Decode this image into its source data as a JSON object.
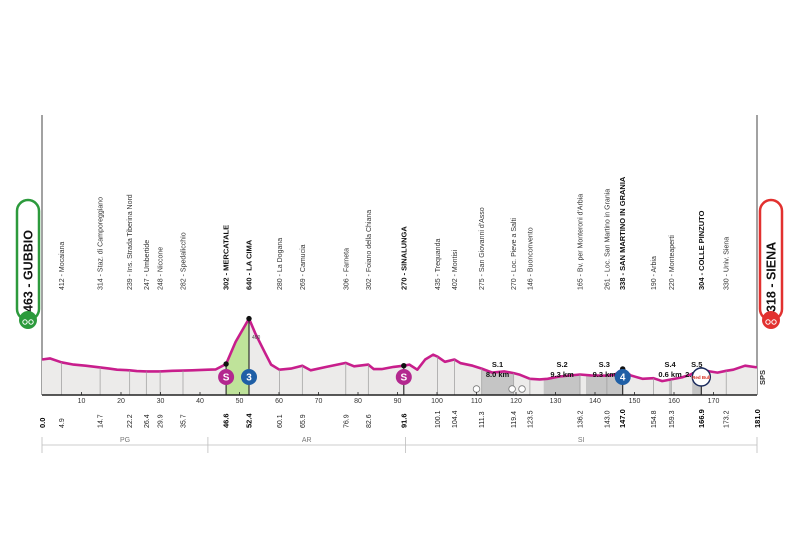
{
  "chart_data": {
    "type": "area",
    "xlim": [
      0,
      181
    ],
    "profile_color": "#c81e8c",
    "start": {
      "altitude": "463",
      "name": "GUBBIO",
      "label_color": "#2c9a3c"
    },
    "finish": {
      "altitude": "318",
      "name": "SIENA",
      "label_color": "#e2312f"
    },
    "x_ticks": [
      "10",
      "20",
      "30",
      "40",
      "50",
      "60",
      "70",
      "80",
      "90",
      "100",
      "110",
      "120",
      "130",
      "140",
      "150",
      "160",
      "170"
    ],
    "elevation_marker": "400",
    "profile": [
      [
        0,
        318
      ],
      [
        2,
        322
      ],
      [
        4.9,
        308
      ],
      [
        8,
        300
      ],
      [
        11,
        296
      ],
      [
        14.7,
        290
      ],
      [
        17,
        286
      ],
      [
        19,
        282
      ],
      [
        22.2,
        280
      ],
      [
        24,
        277
      ],
      [
        26.4,
        276
      ],
      [
        29.9,
        276
      ],
      [
        33,
        278
      ],
      [
        35.7,
        279
      ],
      [
        38,
        280
      ],
      [
        42,
        282
      ],
      [
        44,
        283
      ],
      [
        46.6,
        302
      ],
      [
        49,
        380
      ],
      [
        52.4,
        462
      ],
      [
        54,
        410
      ],
      [
        56.5,
        340
      ],
      [
        58,
        300
      ],
      [
        60.1,
        282
      ],
      [
        63,
        286
      ],
      [
        65.9,
        296
      ],
      [
        68,
        280
      ],
      [
        72,
        292
      ],
      [
        76.9,
        306
      ],
      [
        79,
        294
      ],
      [
        82.6,
        300
      ],
      [
        84,
        284
      ],
      [
        86,
        284
      ],
      [
        89,
        292
      ],
      [
        91.6,
        296
      ],
      [
        93,
        300
      ],
      [
        95,
        282
      ],
      [
        97,
        318
      ],
      [
        99,
        335
      ],
      [
        100.1,
        328
      ],
      [
        102,
        310
      ],
      [
        104.4,
        318
      ],
      [
        106,
        305
      ],
      [
        109,
        296
      ],
      [
        111.3,
        286
      ],
      [
        114,
        272
      ],
      [
        117,
        276
      ],
      [
        119.4,
        270
      ],
      [
        121,
        264
      ],
      [
        123.5,
        250
      ],
      [
        126,
        248
      ],
      [
        128,
        250
      ],
      [
        131,
        258
      ],
      [
        136.2,
        265
      ],
      [
        139,
        262
      ],
      [
        143,
        261
      ],
      [
        145,
        264
      ],
      [
        147,
        285
      ],
      [
        149,
        262
      ],
      [
        152,
        250
      ],
      [
        154.8,
        252
      ],
      [
        157,
        242
      ],
      [
        159.3,
        248
      ],
      [
        162,
        255
      ],
      [
        164,
        264
      ],
      [
        166.9,
        282
      ],
      [
        169,
        276
      ],
      [
        171,
        272
      ],
      [
        173.2,
        278
      ],
      [
        175,
        282
      ],
      [
        178,
        296
      ],
      [
        181,
        290
      ]
    ],
    "points": [
      {
        "km": "4.9",
        "label": "412 - Mocaiana",
        "bold": false
      },
      {
        "km": "14.7",
        "label": "314 - Staz. di Camporeggiano",
        "bold": false
      },
      {
        "km": "22.2",
        "label": "239 - Ins. Strada Tiberina Nord",
        "bold": false
      },
      {
        "km": "26.4",
        "label": "247 - Umbertide",
        "bold": false
      },
      {
        "km": "29.9",
        "label": "248 - Niccone",
        "bold": false
      },
      {
        "km": "35.7",
        "label": "282 - Spedalicchio",
        "bold": false
      },
      {
        "km": "46.6",
        "label": "302 - MERCATALE",
        "bold": true
      },
      {
        "km": "52.4",
        "label": "640 - LA CIMA",
        "bold": true
      },
      {
        "km": "60.1",
        "label": "280 - La Dogana",
        "bold": false
      },
      {
        "km": "65.9",
        "label": "269 - Camucia",
        "bold": false
      },
      {
        "km": "76.9",
        "label": "306 - Farneta",
        "bold": false
      },
      {
        "km": "82.6",
        "label": "302 - Foiano della Chiana",
        "bold": false
      },
      {
        "km": "91.6",
        "label": "270 - SINALUNGA",
        "bold": true
      },
      {
        "km": "100.1",
        "label": "435 - Trequanda",
        "bold": false
      },
      {
        "km": "104.4",
        "label": "402 - Montisi",
        "bold": false
      },
      {
        "km": "111.3",
        "label": "275 - San Giovanni d'Asso",
        "bold": false
      },
      {
        "km": "119.4",
        "label": "270 - Loc. Pieve a Salti",
        "bold": false
      },
      {
        "km": "123.5",
        "label": "146 - Buonconvento",
        "bold": false
      },
      {
        "km": "136.2",
        "label": "165 - Bv. per Monteroni d'Arbia",
        "bold": false
      },
      {
        "km": "143.0",
        "label": "261 - Loc. San Martino in Grania",
        "bold": false
      },
      {
        "km": "147.0",
        "label": "338 - SAN MARTINO IN GRANIA",
        "bold": true
      },
      {
        "km": "154.8",
        "label": "190 - Arbia",
        "bold": false
      },
      {
        "km": "159.3",
        "label": "220 - Monteaperti",
        "bold": false
      },
      {
        "km": "166.9",
        "label": "304 - COLLE PINZUTO",
        "bold": true
      },
      {
        "km": "173.2",
        "label": "330 - Univ. Siena",
        "bold": false
      }
    ],
    "km_start": "0.0",
    "km_end": "181.0",
    "sectors": [
      {
        "from": 111.3,
        "to": 119.3,
        "name": "S.1",
        "length": "8.0 km"
      },
      {
        "from": 127,
        "to": 136.3,
        "name": "S.2",
        "length": "9.3 km"
      },
      {
        "from": 137.7,
        "to": 147,
        "name": "S.3",
        "length": "9.3 km"
      },
      {
        "from": 158.7,
        "to": 159.3,
        "name": "S.4",
        "length": "0.6 km"
      },
      {
        "from": 164.6,
        "to": 166.9,
        "name": "S.5",
        "length": "2.3 km"
      }
    ],
    "regions": [
      {
        "name": "PG",
        "from": 0,
        "to": 42
      },
      {
        "name": "AR",
        "from": 42,
        "to": 92
      },
      {
        "name": "SI",
        "from": 92,
        "to": 181
      }
    ],
    "icons": [
      {
        "km": 46.6,
        "kind": "sprint",
        "text": "S"
      },
      {
        "km": 52.4,
        "kind": "kom",
        "text": "3"
      },
      {
        "km": 91.6,
        "kind": "sprint",
        "text": "S"
      },
      {
        "km": 147,
        "kind": "kom",
        "text": "4"
      },
      {
        "km": 166.9,
        "kind": "redbull",
        "text": "Red Bull"
      }
    ],
    "feed_markers": [
      110,
      119,
      121.5
    ],
    "kom_climb": {
      "from": 46.6,
      "to": 52.4
    },
    "sps_label": "SPS"
  }
}
